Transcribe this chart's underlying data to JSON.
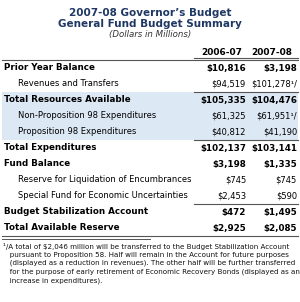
{
  "title1": "2007-08 Governor’s Budget",
  "title2": "General Fund Budget Summary",
  "title3": "(Dollars in Millions)",
  "col_headers": [
    "2006-07",
    "2007-08"
  ],
  "rows": [
    {
      "label": "Prior Year Balance",
      "v1": "$10,816",
      "v2": "$3,198",
      "bold": true,
      "indent": false,
      "bg": "white",
      "top_border": true,
      "bottom_border": false
    },
    {
      "label": "Revenues and Transfers",
      "v1": "$94,519",
      "v2": "$101,278¹/",
      "bold": false,
      "indent": true,
      "bg": "white",
      "top_border": false,
      "bottom_border": true
    },
    {
      "label": "Total Resources Available",
      "v1": "$105,335",
      "v2": "$104,476",
      "bold": true,
      "indent": false,
      "bg": "#dde8f5",
      "top_border": false,
      "bottom_border": false
    },
    {
      "label": "Non-Proposition 98 Expenditures",
      "v1": "$61,325",
      "v2": "$61,951¹/",
      "bold": false,
      "indent": true,
      "bg": "#dde8f5",
      "top_border": false,
      "bottom_border": false
    },
    {
      "label": "Proposition 98 Expenditures",
      "v1": "$40,812",
      "v2": "$41,190",
      "bold": false,
      "indent": true,
      "bg": "#dde8f5",
      "top_border": false,
      "bottom_border": true
    },
    {
      "label": "Total Expenditures",
      "v1": "$102,137",
      "v2": "$103,141",
      "bold": true,
      "indent": false,
      "bg": "white",
      "top_border": false,
      "bottom_border": false
    },
    {
      "label": "Fund Balance",
      "v1": "$3,198",
      "v2": "$1,335",
      "bold": true,
      "indent": false,
      "bg": "white",
      "top_border": false,
      "bottom_border": false
    },
    {
      "label": "Reserve for Liquidation of Encumbrances",
      "v1": "$745",
      "v2": "$745",
      "bold": false,
      "indent": true,
      "bg": "white",
      "top_border": false,
      "bottom_border": false
    },
    {
      "label": "Special Fund for Economic Uncertainties",
      "v1": "$2,453",
      "v2": "$590",
      "bold": false,
      "indent": true,
      "bg": "white",
      "top_border": false,
      "bottom_border": true
    },
    {
      "label": "Budget Stabilization Account",
      "v1": "$472",
      "v2": "$1,495",
      "bold": true,
      "indent": false,
      "bg": "white",
      "top_border": false,
      "bottom_border": false
    },
    {
      "label": "Total Available Reserve",
      "v1": "$2,925",
      "v2": "$2,085",
      "bold": true,
      "indent": false,
      "bg": "white",
      "top_border": false,
      "bottom_border": false
    }
  ],
  "footnote_lines": [
    "¹/A total of $2,046 million will be transferred to the Budget Stabilization Account",
    "   pursuant to Proposition 58. Half will remain in the Account for future purposes",
    "   (displayed as a reduction in revenues). The other half will be further transferred",
    "   for the purpose of early retirement of Economic Recovery Bonds (displayed as an",
    "   increase in expenditures)."
  ],
  "title_color": "#1f3864",
  "bg_stripe": "#dde8f5",
  "line_color": "#555555"
}
